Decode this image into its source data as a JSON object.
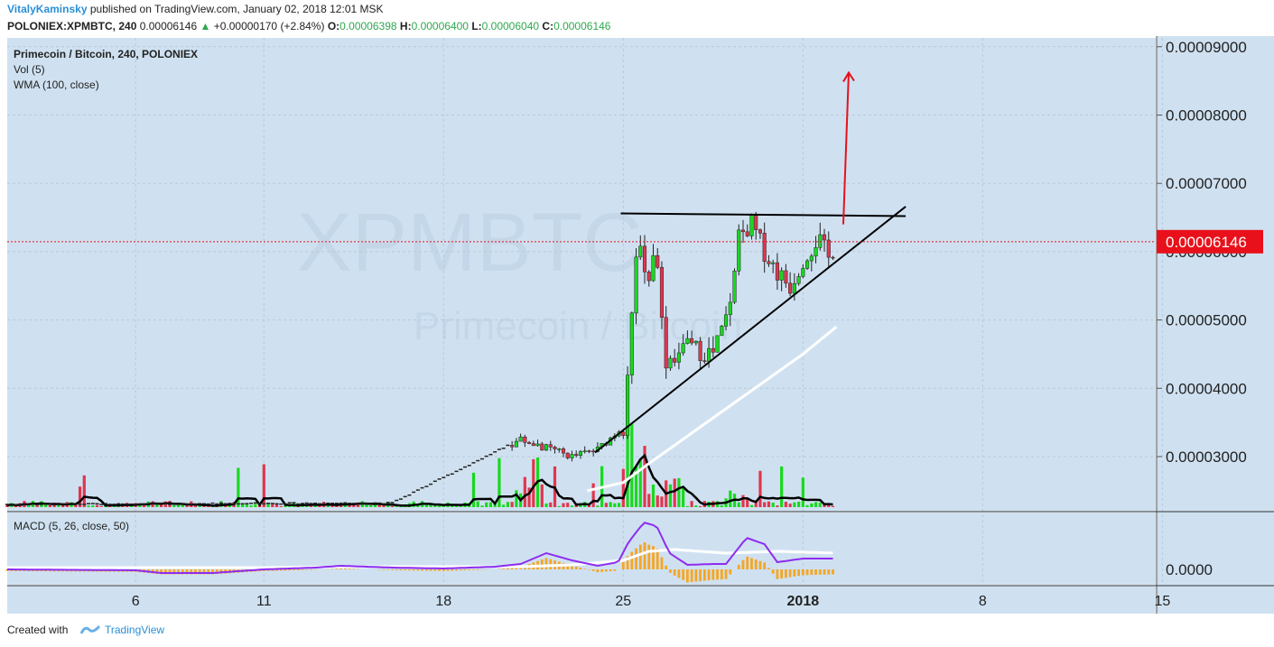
{
  "header": {
    "author": "VitalyKaminsky",
    "published_text": "published on TradingView.com, January 02, 2018 12:01 MSK",
    "symbol": "POLONIEX:XPMBTC, 240",
    "last": "0.00006146",
    "change": "+0.00000170 (+2.84%)",
    "o_label": "O:",
    "o_value": "0.00006398",
    "h_label": "H:",
    "h_value": "0.00006400",
    "l_label": "L:",
    "l_value": "0.00006040",
    "c_label": "C:",
    "c_value": "0.00006146"
  },
  "legend": {
    "title": "Primecoin / Bitcoin, 240, POLONIEX",
    "vol": "Vol (5)",
    "wma": "WMA (100, close)",
    "macd": "MACD (5, 26, close, 50)"
  },
  "watermark": {
    "ticker": "XPMBTC",
    "name": "Primecoin / Bitcoin"
  },
  "footer": {
    "created_with": "Created with",
    "brand": "TradingView"
  },
  "colors": {
    "background": "#cfe1f1",
    "up": "#17d91d",
    "down": "#e0364f",
    "last_price": "#e8111b",
    "macd_line": "#8e2cf0",
    "signal_line": "#ffffff",
    "hist": "#f5a623",
    "wma": "#ffffff",
    "arrow": "#e8111b"
  },
  "chart_data": [
    {
      "type": "candlestick",
      "title": "Primecoin / Bitcoin, 240, POLONIEX",
      "y_ticks": [
        "0.00003000",
        "0.00004000",
        "0.00005000",
        "0.00006000",
        "0.00007000",
        "0.00008000",
        "0.00009000"
      ],
      "ylim": [
        2.26e-05,
        9.05e-05
      ],
      "last_price_label": "0.00006146",
      "last_price": 6.146e-05,
      "x_ticks": [
        "6",
        "11",
        "18",
        "25",
        "2018",
        "8",
        "15"
      ],
      "overview": [
        {
          "date": "Dec 2",
          "price": 2.3e-05
        },
        {
          "date": "Dec 16",
          "price": 2.32e-05
        },
        {
          "date": "Dec 21",
          "price": 3.25e-05
        },
        {
          "date": "Dec 23",
          "price": 3e-05
        },
        {
          "date": "Dec 24",
          "price": 3.45e-05
        },
        {
          "date": "Dec 25",
          "price": 6.4e-05
        },
        {
          "date": "Dec 26",
          "price": 4.4e-05
        },
        {
          "date": "Dec 28",
          "price": 4.7e-05
        },
        {
          "date": "Dec 29",
          "price": 6.35e-05
        },
        {
          "date": "Dec 30",
          "price": 5.6e-05
        },
        {
          "date": "Jan 1",
          "price": 6.15e-05
        },
        {
          "date": "Jan 2",
          "price": 6.15e-05
        }
      ],
      "annotations": [
        {
          "type": "resistance_line",
          "from": [
            "Dec 25",
            6.56e-05
          ],
          "to": [
            "Jan 5",
            6.52e-05
          ]
        },
        {
          "type": "support_line",
          "from": [
            "Dec 23",
            3.06e-05
          ],
          "to": [
            "Jan 5",
            6.66e-05
          ]
        },
        {
          "type": "arrow",
          "from": [
            "Jan 2",
            6.4e-05
          ],
          "to": [
            "Jan 2",
            8.62e-05
          ]
        }
      ]
    },
    {
      "type": "bar",
      "title": "Vol (5)",
      "note": "volume histogram with 5-period moving average (black line)"
    },
    {
      "type": "line",
      "title": "MACD (5, 26, close, 50)",
      "y_ticks": [
        "0.0000"
      ],
      "series": [
        {
          "name": "MACD"
        },
        {
          "name": "Signal"
        },
        {
          "name": "Histogram"
        }
      ]
    }
  ]
}
